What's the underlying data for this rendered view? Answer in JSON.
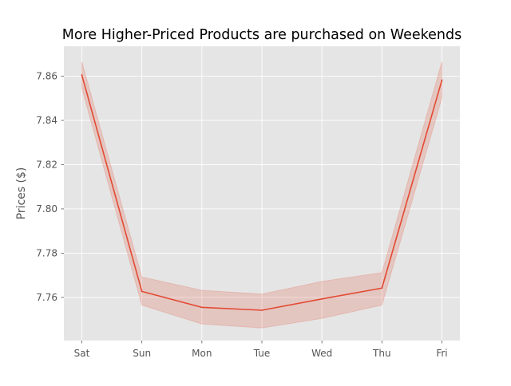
{
  "chart_data": {
    "type": "line",
    "title": "More Higher-Priced Products are purchased on Weekends",
    "xlabel": "",
    "ylabel": "Prices ($)",
    "categories": [
      "Sat",
      "Sun",
      "Mon",
      "Tue",
      "Wed",
      "Thu",
      "Fri"
    ],
    "series": [
      {
        "values": [
          7.8605,
          7.7627,
          7.7555,
          7.7542,
          7.7593,
          7.7642,
          7.8582
        ],
        "ci_lower": [
          7.8545,
          7.7565,
          7.748,
          7.7462,
          7.7505,
          7.7565,
          7.8502
        ],
        "ci_upper": [
          7.8665,
          7.7692,
          7.7632,
          7.7615,
          7.7672,
          7.7712,
          7.8665
        ],
        "color": "#E24A33"
      }
    ],
    "ylim": [
      7.7405,
      7.8735
    ],
    "yticks": [
      "7.76",
      "7.78",
      "7.80",
      "7.82",
      "7.84",
      "7.86"
    ],
    "ytick_values": [
      7.76,
      7.78,
      7.8,
      7.82,
      7.84,
      7.86
    ],
    "grid": true,
    "style": {
      "axes_background": "#E5E5E5",
      "grid_color": "#FFFFFF",
      "tick_label_color": "#555555",
      "title_color": "#000000",
      "band_color": "#E24A33"
    }
  }
}
